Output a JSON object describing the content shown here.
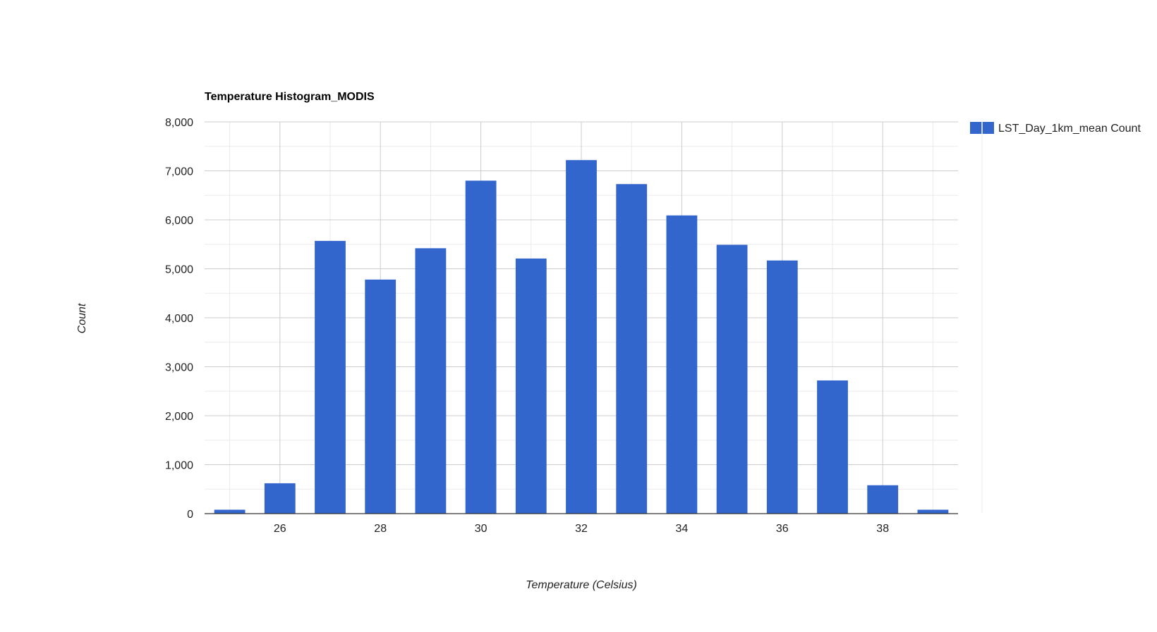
{
  "chart_data": {
    "type": "bar",
    "title": "Temperature Histogram_MODIS",
    "xlabel": "Temperature (Celsius)",
    "ylabel": "Count",
    "x": [
      25,
      26,
      27,
      28,
      29,
      30,
      31,
      32,
      33,
      34,
      35,
      36,
      37,
      38,
      39
    ],
    "series": [
      {
        "name": "LST_Day_1km_mean Count",
        "color": "#3366cc",
        "values": [
          80,
          620,
          5570,
          4780,
          5420,
          6800,
          5210,
          7220,
          6730,
          6090,
          5490,
          5170,
          2720,
          580,
          80
        ]
      }
    ],
    "xlim": [
      24.5,
      39.5
    ],
    "ylim": [
      0,
      8000
    ],
    "x_ticks": [
      26,
      28,
      30,
      32,
      34,
      36,
      38
    ],
    "x_tick_labels": [
      "26",
      "28",
      "30",
      "32",
      "34",
      "36",
      "38"
    ],
    "y_ticks": [
      0,
      1000,
      2000,
      3000,
      4000,
      5000,
      6000,
      7000,
      8000
    ],
    "y_tick_labels": [
      "0",
      "1,000",
      "2,000",
      "3,000",
      "4,000",
      "5,000",
      "6,000",
      "7,000",
      "8,000"
    ],
    "grid": true,
    "legend_position": "right"
  }
}
